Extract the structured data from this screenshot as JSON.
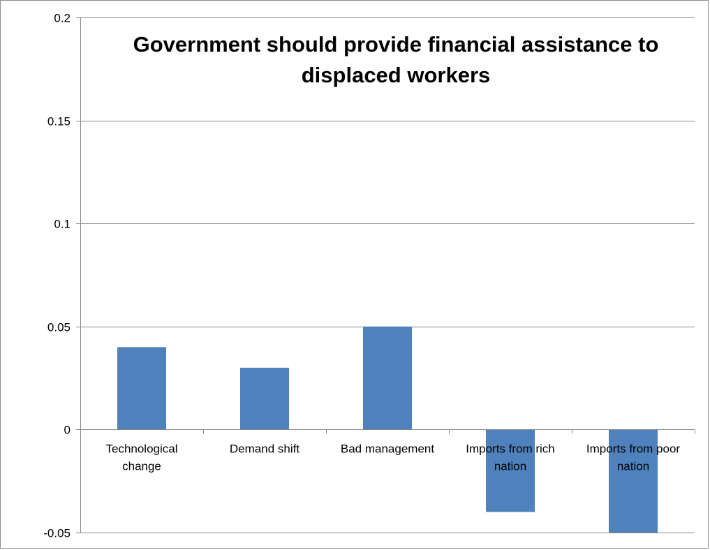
{
  "chart_data": {
    "type": "bar",
    "title_lines": [
      "Government should provide financial assistance to",
      "displaced workers"
    ],
    "categories": [
      [
        "Technological",
        "change"
      ],
      [
        "Demand shift"
      ],
      [
        "Bad management"
      ],
      [
        "Imports from rich",
        "nation"
      ],
      [
        "Imports from poor",
        "nation"
      ]
    ],
    "values": [
      0.04,
      0.03,
      0.05,
      -0.04,
      -0.05
    ],
    "ylim": [
      -0.05,
      0.2
    ],
    "yticks": [
      -0.05,
      0,
      0.05,
      0.1,
      0.15,
      0.2
    ],
    "ytick_labels": [
      "-0.05",
      "0",
      "0.05",
      "0.1",
      "0.15",
      "0.2"
    ],
    "grid": true,
    "legend": "none",
    "bar_color": "#4f81bd",
    "gridline_color": "#868686"
  }
}
